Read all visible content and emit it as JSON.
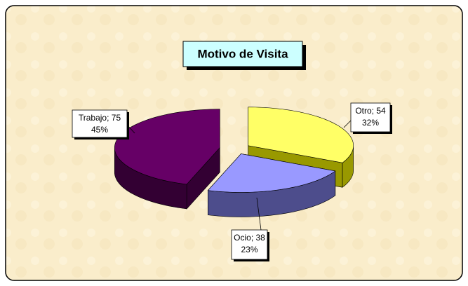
{
  "chart_data": {
    "type": "pie3d",
    "title": "Motivo de Visita",
    "categories": [
      "Otro",
      "Ocio",
      "Trabajo"
    ],
    "values": [
      54,
      38,
      75
    ],
    "value_labels": [
      "Otro; 54",
      "Ocio; 38",
      "Trabajo; 75"
    ],
    "percent_labels": [
      "32%",
      "23%",
      "45%"
    ],
    "colors": [
      "#ffff66",
      "#9999ff",
      "#660066"
    ],
    "side_colors": [
      "#999900",
      "#4d4d8c",
      "#330033"
    ]
  }
}
